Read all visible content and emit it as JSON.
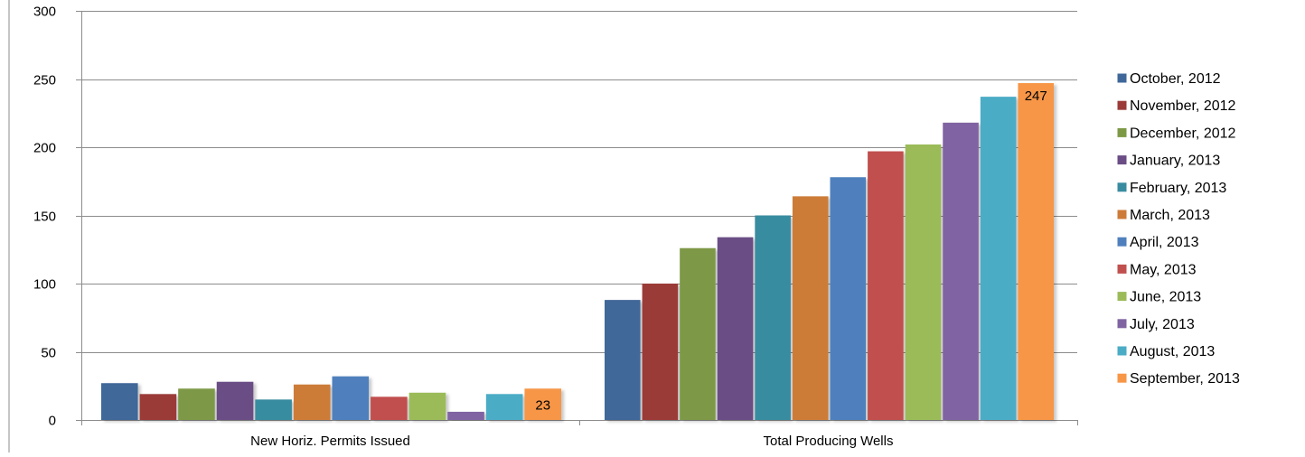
{
  "chart_data": {
    "type": "bar",
    "title": "",
    "xlabel": "",
    "ylabel": "",
    "categories": [
      "New Horiz. Permits Issued",
      "Total Producing Wells"
    ],
    "ylim": [
      0,
      300
    ],
    "yticks": [
      0,
      50,
      100,
      150,
      200,
      250,
      300
    ],
    "grid": true,
    "legend_position": "right",
    "series": [
      {
        "name": "October, 2012",
        "color": "#3f6799",
        "values": [
          27,
          88
        ]
      },
      {
        "name": "November, 2012",
        "color": "#9b3b39",
        "values": [
          19,
          100
        ]
      },
      {
        "name": "December, 2012",
        "color": "#7d9946",
        "values": [
          23,
          126
        ]
      },
      {
        "name": "January, 2013",
        "color": "#6a4d85",
        "values": [
          28,
          134
        ]
      },
      {
        "name": "February, 2013",
        "color": "#398ca0",
        "values": [
          15,
          150
        ]
      },
      {
        "name": "March, 2013",
        "color": "#cd7b38",
        "values": [
          26,
          164
        ]
      },
      {
        "name": "April, 2013",
        "color": "#4f80bd",
        "values": [
          32,
          178
        ]
      },
      {
        "name": "May, 2013",
        "color": "#c0504e",
        "values": [
          17,
          197
        ]
      },
      {
        "name": "June, 2013",
        "color": "#9bbb59",
        "values": [
          20,
          202
        ]
      },
      {
        "name": "July, 2013",
        "color": "#8064a2",
        "values": [
          6,
          218
        ]
      },
      {
        "name": "August, 2013",
        "color": "#4bacc6",
        "values": [
          19,
          237
        ]
      },
      {
        "name": "September, 2013",
        "color": "#f79646",
        "values": [
          23,
          247
        ]
      }
    ],
    "data_labels": [
      {
        "series": "September, 2013",
        "category": "New Horiz. Permits Issued",
        "text": "23"
      },
      {
        "series": "September, 2013",
        "category": "Total Producing Wells",
        "text": "247"
      }
    ]
  }
}
